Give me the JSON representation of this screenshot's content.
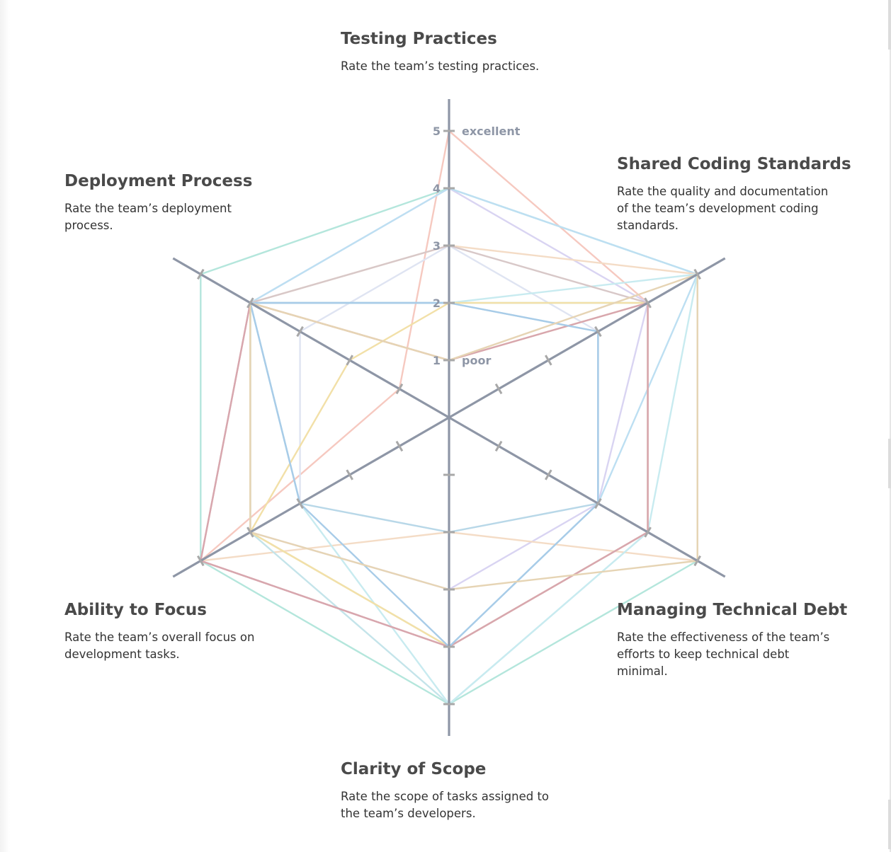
{
  "chart_data": {
    "type": "radar",
    "axes": [
      {
        "name": "Testing Practices",
        "description": "Rate the team’s testing practices."
      },
      {
        "name": "Shared Coding Standards",
        "description": "Rate the quality and documentation of the team’s development coding standards."
      },
      {
        "name": "Managing Technical Debt",
        "description": "Rate the effectiveness of the team’s efforts to keep technical debt minimal."
      },
      {
        "name": "Clarity of Scope",
        "description": "Rate the scope of tasks assigned to the team’s developers."
      },
      {
        "name": "Ability to Focus",
        "description": "Rate the team’s overall focus on development tasks."
      },
      {
        "name": "Deployment Process",
        "description": "Rate the team’s deployment process."
      }
    ],
    "scale": {
      "min": 0,
      "max": 5,
      "ticks": [
        1,
        2,
        3,
        4,
        5
      ]
    },
    "tick_labels": {
      "1": "poor",
      "5": "excellent"
    },
    "tick_numbers": [
      "1",
      "2",
      "3",
      "4",
      "5"
    ],
    "series": [
      {
        "color": "#f6c9c0",
        "values": [
          5,
          4,
          4,
          4,
          5,
          1
        ]
      },
      {
        "color": "#b4e6dc",
        "values": [
          4,
          5,
          5,
          5,
          5,
          5
        ]
      },
      {
        "color": "#d9d4f2",
        "values": [
          4,
          4,
          3,
          3,
          4,
          4
        ]
      },
      {
        "color": "#bddff2",
        "values": [
          4,
          5,
          3,
          4,
          4,
          4
        ]
      },
      {
        "color": "#f4dcc6",
        "values": [
          3,
          5,
          5,
          2,
          5,
          4
        ]
      },
      {
        "color": "#dfe4f2",
        "values": [
          3,
          3,
          3,
          2,
          3,
          3
        ]
      },
      {
        "color": "#c4e4ea",
        "values": [
          2,
          4,
          4,
          5,
          4,
          4
        ]
      },
      {
        "color": "#f7e6b4",
        "values": [
          1,
          4,
          4,
          4,
          4,
          4
        ]
      },
      {
        "color": "#c8ebf0",
        "values": [
          2,
          5,
          4,
          5,
          3,
          4
        ]
      },
      {
        "color": "#b8d8e8",
        "values": [
          2,
          3,
          3,
          2,
          3,
          4
        ]
      },
      {
        "color": "#f2e0a8",
        "values": [
          2,
          4,
          4,
          4,
          4,
          2
        ]
      },
      {
        "color": "#d8c8c8",
        "values": [
          3,
          4,
          4,
          4,
          5,
          4
        ]
      },
      {
        "color": "#d8a6ae",
        "values": [
          1,
          4,
          4,
          4,
          5,
          4
        ]
      },
      {
        "color": "#a8cce8",
        "values": [
          2,
          3,
          3,
          4,
          3,
          4
        ]
      },
      {
        "color": "#e6d4b4",
        "values": [
          1,
          5,
          5,
          3,
          4,
          4
        ]
      }
    ],
    "colors": {
      "axis": "#8e96a6",
      "tick": "#a8a8a8",
      "scale_text": "#8e96a6"
    },
    "grid": false,
    "legend": "none"
  }
}
